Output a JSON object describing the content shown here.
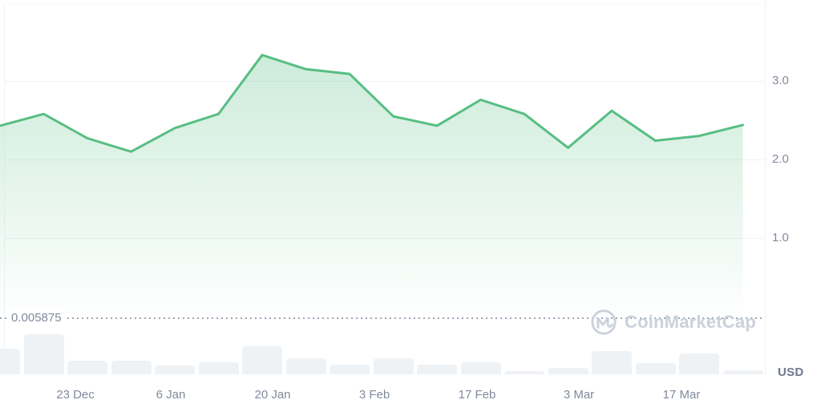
{
  "chart_data": {
    "type": "area",
    "title": "Price chart with volume (CoinMarketCap style)",
    "currency": "USD",
    "x_tick_labels": [
      "23 Dec",
      "6 Jan",
      "20 Jan",
      "3 Feb",
      "17 Feb",
      "3 Mar",
      "17 Mar"
    ],
    "y_tick_labels": [
      "3.0",
      "2.0",
      "1.0"
    ],
    "ylim": [
      0,
      4
    ],
    "grid": "horizontal",
    "legend_position": "none",
    "reference_line_label": "0.005875",
    "dates": [
      "13 Dec",
      "19 Dec",
      "25 Dec",
      "31 Dec",
      "6 Jan",
      "12 Jan",
      "18 Jan",
      "24 Jan",
      "30 Jan",
      "5 Feb",
      "11 Feb",
      "17 Feb",
      "23 Feb",
      "1 Mar",
      "7 Mar",
      "13 Mar",
      "19 Mar",
      "25 Mar"
    ],
    "prices": [
      2.43,
      2.58,
      2.27,
      2.1,
      2.4,
      2.58,
      3.33,
      3.15,
      3.09,
      2.55,
      2.43,
      2.76,
      2.58,
      2.15,
      2.62,
      2.24,
      2.3,
      2.44
    ],
    "volumes_rel": [
      64,
      100,
      34,
      34,
      22,
      30,
      70,
      40,
      24,
      40,
      24,
      30,
      8,
      16,
      58,
      28,
      52,
      10
    ],
    "colors": {
      "line": "#57BE83",
      "fill_top": "rgba(87,190,131,0.30)",
      "fill_bottom": "rgba(87,190,131,0)",
      "volume_bar": "#EFF2F5",
      "grid": "#F0F2F5",
      "axis_label": "#808A9D",
      "reference_dots": "#9CA6B8",
      "watermark": "#CBD1DC"
    }
  },
  "axis": {
    "usd_label": "USD"
  },
  "reference": {
    "price_label": "0.005875"
  },
  "watermark": {
    "brand": "CoinMarketCap"
  }
}
